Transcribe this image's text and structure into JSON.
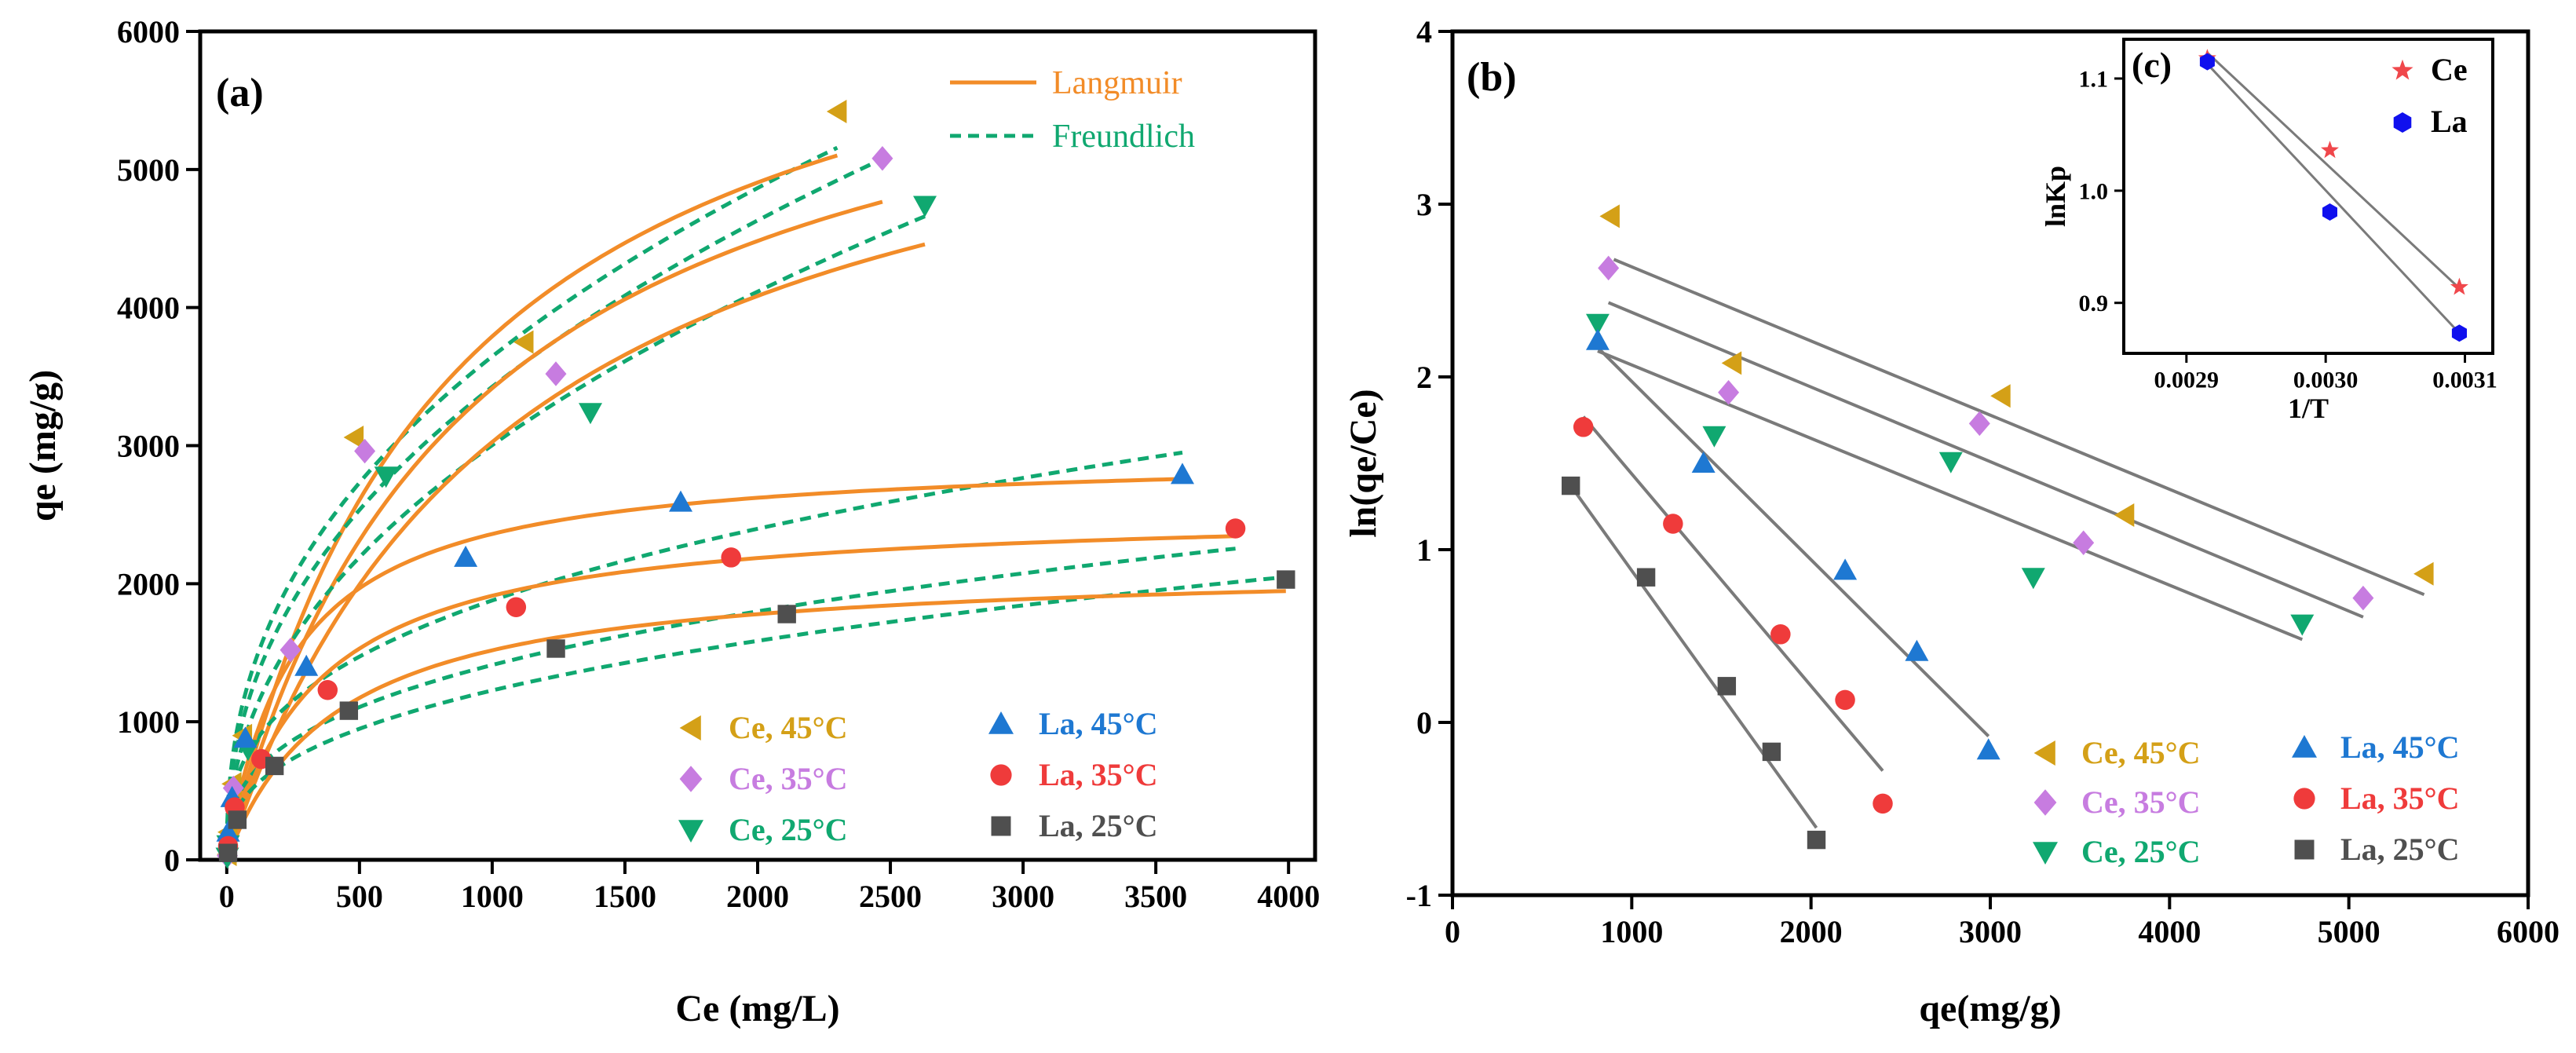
{
  "chart_data": [
    {
      "type": "scatter",
      "panel_label": "(a)",
      "xlabel": "Ce (mg/L)",
      "ylabel": "qe (mg/g)",
      "xlim": [
        -100,
        4100
      ],
      "ylim": [
        0,
        6000
      ],
      "xticks": [
        0,
        500,
        1000,
        1500,
        2000,
        2500,
        3000,
        3500,
        4000
      ],
      "yticks": [
        0,
        1000,
        2000,
        3000,
        4000,
        5000,
        6000
      ],
      "fit_legend": [
        {
          "name": "Langmuir",
          "style": "solid",
          "color": "#F28C28"
        },
        {
          "name": "Freundlich",
          "style": "dashed",
          "color": "#10A870"
        }
      ],
      "series": [
        {
          "name": "Ce, 45°C",
          "marker": "triangle-left",
          "color": "#D4A017",
          "x": [
            2,
            5,
            20,
            60,
            480,
            1120,
            2300
          ],
          "y": [
            40,
            200,
            550,
            900,
            3060,
            3750,
            5420
          ],
          "langmuir": {
            "qmax": 6950,
            "KL": 0.0012,
            "xmax": 2300
          },
          "freundlich": {
            "KF": 205,
            "n": 2.4,
            "xmax": 2300
          }
        },
        {
          "name": "Ce, 35°C",
          "marker": "diamond",
          "color": "#C77CE0",
          "x": [
            2,
            5,
            25,
            240,
            520,
            1240,
            2470
          ],
          "y": [
            30,
            150,
            520,
            1520,
            2960,
            3520,
            5080
          ],
          "langmuir": {
            "qmax": 6520,
            "KL": 0.0011,
            "xmax": 2470
          },
          "freundlich": {
            "KF": 170,
            "n": 2.3,
            "xmax": 2470
          }
        },
        {
          "name": "Ce, 25°C",
          "marker": "triangle-down",
          "color": "#10A870",
          "x": [
            2,
            5,
            80,
            600,
            1370,
            2630
          ],
          "y": [
            20,
            110,
            800,
            2780,
            3240,
            4740
          ],
          "langmuir": {
            "qmax": 6280,
            "KL": 0.00093,
            "xmax": 2630
          },
          "freundlich": {
            "KF": 130,
            "n": 2.2,
            "xmax": 2630
          }
        },
        {
          "name": "La, 45°C",
          "marker": "triangle-up",
          "color": "#1E78D2",
          "x": [
            5,
            20,
            70,
            300,
            900,
            1710,
            3600
          ],
          "y": [
            200,
            450,
            880,
            1400,
            2190,
            2590,
            2790
          ],
          "langmuir": {
            "qmax": 2950,
            "KL": 0.004,
            "xmax": 3600
          },
          "freundlich": {
            "KF": 165,
            "n": 2.84,
            "xmax": 3600
          }
        },
        {
          "name": "La, 35°C",
          "marker": "circle",
          "color": "#EF3B3B",
          "x": [
            5,
            30,
            130,
            380,
            1090,
            1900,
            3800
          ],
          "y": [
            100,
            380,
            730,
            1230,
            1830,
            2190,
            2400
          ],
          "langmuir": {
            "qmax": 2550,
            "KL": 0.003,
            "xmax": 3800
          },
          "freundlich": {
            "KF": 125,
            "n": 2.85,
            "xmax": 3800
          }
        },
        {
          "name": "La, 25°C",
          "marker": "square",
          "color": "#4F4F4F",
          "x": [
            5,
            40,
            180,
            460,
            1240,
            2110,
            3990
          ],
          "y": [
            50,
            290,
            680,
            1080,
            1530,
            1780,
            2030
          ],
          "langmuir": {
            "qmax": 2150,
            "KL": 0.0024,
            "xmax": 3990
          },
          "freundlich": {
            "KF": 95,
            "n": 2.7,
            "xmax": 3990
          }
        }
      ]
    },
    {
      "type": "scatter",
      "panel_label": "(b)",
      "xlabel": "qe(mg/g)",
      "ylabel": "ln(qe/Ce)",
      "xlim": [
        0,
        6000
      ],
      "ylim": [
        -1,
        4
      ],
      "xticks": [
        0,
        1000,
        2000,
        3000,
        4000,
        5000,
        6000
      ],
      "yticks": [
        -1,
        0,
        1,
        2,
        3,
        4
      ],
      "series": [
        {
          "name": "Ce, 45°C",
          "marker": "triangle-left",
          "color": "#D4A017",
          "x": [
            880,
            1560,
            3060,
            3750,
            5420
          ],
          "y": [
            2.93,
            2.08,
            1.89,
            1.2,
            0.86
          ],
          "fit": {
            "x0": 900,
            "y0": 2.68,
            "x1": 5420,
            "y1": 0.74
          }
        },
        {
          "name": "Ce, 35°C",
          "marker": "diamond",
          "color": "#C77CE0",
          "x": [
            870,
            1540,
            2940,
            3520,
            5080
          ],
          "y": [
            2.63,
            1.91,
            1.73,
            1.04,
            0.72
          ],
          "fit": {
            "x0": 870,
            "y0": 2.43,
            "x1": 5080,
            "y1": 0.61
          }
        },
        {
          "name": "Ce, 25°C",
          "marker": "triangle-down",
          "color": "#10A870",
          "x": [
            810,
            1460,
            2780,
            3240,
            4740
          ],
          "y": [
            2.31,
            1.66,
            1.51,
            0.84,
            0.57
          ],
          "fit": {
            "x0": 810,
            "y0": 2.15,
            "x1": 4740,
            "y1": 0.48
          }
        },
        {
          "name": "La, 45°C",
          "marker": "triangle-up",
          "color": "#1E78D2",
          "x": [
            810,
            1400,
            2190,
            2590,
            2990
          ],
          "y": [
            2.21,
            1.5,
            0.88,
            0.41,
            -0.16
          ],
          "fit": {
            "x0": 810,
            "y0": 2.17,
            "x1": 2990,
            "y1": -0.08
          }
        },
        {
          "name": "La, 35°C",
          "marker": "circle",
          "color": "#EF3B3B",
          "x": [
            730,
            1230,
            1830,
            2190,
            2400
          ],
          "y": [
            1.71,
            1.15,
            0.51,
            0.13,
            -0.47
          ],
          "fit": {
            "x0": 730,
            "y0": 1.77,
            "x1": 2400,
            "y1": -0.28
          }
        },
        {
          "name": "La, 25°C",
          "marker": "square",
          "color": "#4F4F4F",
          "x": [
            660,
            1080,
            1530,
            1780,
            2030
          ],
          "y": [
            1.37,
            0.84,
            0.21,
            -0.17,
            -0.68
          ],
          "fit": {
            "x0": 660,
            "y0": 1.37,
            "x1": 2030,
            "y1": -0.61
          }
        }
      ]
    },
    {
      "type": "scatter",
      "panel_label": "(c)",
      "xlabel": "1/T",
      "ylabel": "lnKp",
      "xlim": [
        0.002855,
        0.00312
      ],
      "ylim": [
        0.855,
        1.135
      ],
      "xticks": [
        0.0029,
        0.003,
        0.0031
      ],
      "xtick_labels": [
        "0.0029",
        "0.0030",
        "0.0031"
      ],
      "yticks": [
        0.9,
        1.0,
        1.1
      ],
      "ytick_labels": [
        "0.9",
        "1.0",
        "1.1"
      ],
      "series": [
        {
          "name": "Ce",
          "marker": "star",
          "color": "#F0474B",
          "x": [
            0.002915,
            0.003003,
            0.003096
          ],
          "y": [
            1.118,
            1.036,
            0.914
          ],
          "fit": {
            "x0": 0.002915,
            "y0": 1.123,
            "x1": 0.003096,
            "y1": 0.913
          }
        },
        {
          "name": "La",
          "marker": "hexagon",
          "color": "#1010EE",
          "x": [
            0.002915,
            0.003003,
            0.003096
          ],
          "y": [
            1.115,
            0.981,
            0.873
          ],
          "fit": {
            "x0": 0.002915,
            "y0": 1.113,
            "x1": 0.003096,
            "y1": 0.873
          }
        }
      ]
    }
  ]
}
